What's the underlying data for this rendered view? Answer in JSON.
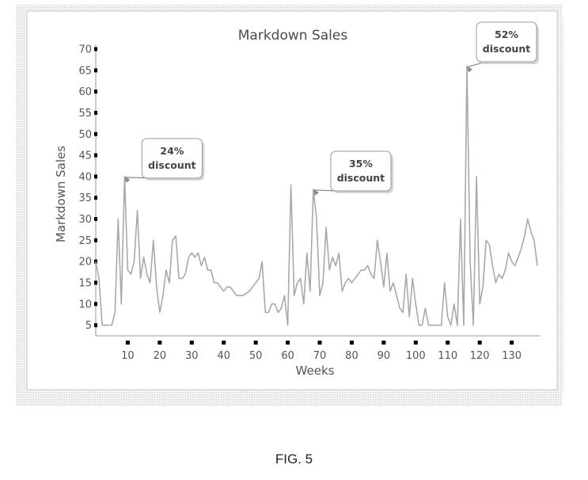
{
  "figure_caption": "FIG. 5",
  "chart_data": {
    "type": "line",
    "title": "Markdown Sales",
    "xlabel": "Weeks",
    "ylabel": "Markdown Sales",
    "xlim": [
      0,
      139
    ],
    "ylim": [
      2.5,
      70
    ],
    "x_ticks": [
      10,
      20,
      30,
      40,
      50,
      60,
      70,
      80,
      90,
      100,
      110,
      120,
      130
    ],
    "y_ticks": [
      5,
      10,
      15,
      20,
      25,
      30,
      35,
      40,
      45,
      50,
      55,
      60,
      65,
      70
    ],
    "grid": false,
    "legend": "none",
    "colors": {
      "line": "#a9a9a9",
      "axis": "#9a9a9a",
      "tick": "#000000",
      "text": "#555555",
      "callout_border": "#999999"
    },
    "series": [
      {
        "x": [
          0,
          1,
          2,
          3,
          4,
          5,
          6,
          7,
          8,
          9,
          10,
          11,
          12,
          13,
          14,
          15,
          16,
          17,
          18,
          19,
          20,
          21,
          22,
          23,
          24,
          25,
          26,
          27,
          28,
          29,
          30,
          31,
          32,
          33,
          34,
          35,
          36,
          37,
          38,
          39,
          40,
          41,
          42,
          43,
          44,
          45,
          46,
          47,
          48,
          49,
          50,
          51,
          52,
          53,
          54,
          55,
          56,
          57,
          58,
          59,
          60,
          61,
          62,
          63,
          64,
          65,
          66,
          67,
          68,
          69,
          70,
          71,
          72,
          73,
          74,
          75,
          76,
          77,
          78,
          79,
          80,
          81,
          82,
          83,
          84,
          85,
          86,
          87,
          88,
          89,
          90,
          91,
          92,
          93,
          94,
          95,
          96,
          97,
          98,
          99,
          100,
          101,
          102,
          103,
          104,
          105,
          106,
          107,
          108,
          109,
          110,
          111,
          112,
          113,
          114,
          115,
          116,
          117,
          118,
          119,
          120,
          121,
          122,
          123,
          124,
          125,
          126,
          127,
          128,
          129,
          130,
          131,
          132,
          133,
          134,
          135,
          136,
          137,
          138
        ],
        "values": [
          20,
          16,
          5,
          5,
          5,
          5,
          8,
          30,
          10,
          40,
          18,
          17,
          20,
          32,
          16,
          21,
          17,
          15,
          25,
          14,
          8,
          12,
          18,
          15,
          25,
          26,
          16,
          16,
          17,
          21,
          22,
          21,
          22,
          19,
          21,
          18,
          18,
          15,
          15,
          14,
          13,
          14,
          14,
          13,
          12,
          12,
          12,
          12.5,
          13,
          14,
          15,
          16,
          20,
          8,
          8,
          10,
          10,
          8,
          9,
          12,
          5,
          38,
          12,
          15,
          16,
          10,
          22,
          13,
          37,
          30,
          12,
          15,
          28,
          18,
          21,
          19,
          22,
          13,
          15,
          16,
          15,
          16,
          17,
          18,
          18,
          19,
          17,
          16,
          25,
          20,
          14,
          22,
          13,
          15,
          12,
          9,
          8,
          17,
          7,
          16,
          10,
          5,
          5,
          9,
          5,
          5,
          5,
          5,
          5,
          15,
          7,
          5,
          10,
          5,
          30,
          5,
          66,
          20,
          5,
          40,
          10,
          14,
          25,
          24,
          19,
          15,
          17,
          16,
          18,
          22,
          20,
          19,
          21,
          23,
          26,
          30,
          27,
          25,
          19
        ]
      }
    ],
    "annotations": [
      {
        "text": [
          "24%",
          "discount"
        ],
        "x": 9,
        "y": 40
      },
      {
        "text": [
          "35%",
          "discount"
        ],
        "x": 68,
        "y": 37
      },
      {
        "text": [
          "52%",
          "discount"
        ],
        "x": 116,
        "y": 66
      }
    ]
  }
}
